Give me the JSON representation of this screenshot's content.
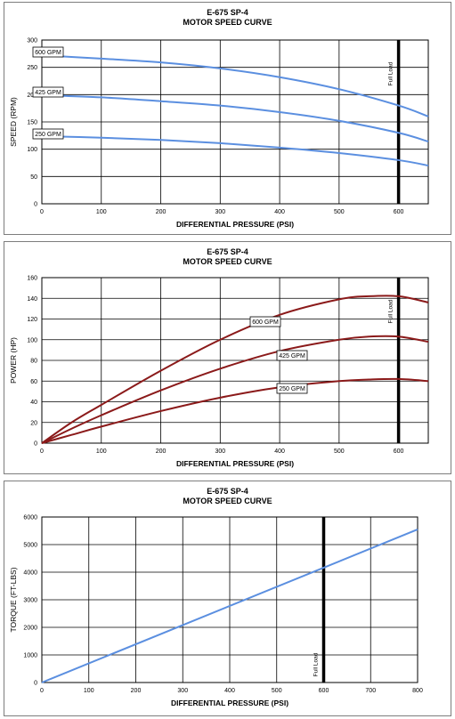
{
  "chart_data": [
    {
      "type": "line",
      "title_line1": "E-675 SP-4",
      "title_line2": "MOTOR SPEED CURVE",
      "xlabel": "DIFFERENTIAL PRESSURE (PSI)",
      "ylabel": "SPEED (RPM)",
      "xlim": [
        0,
        650
      ],
      "ylim": [
        0,
        300
      ],
      "xticks": [
        0,
        100,
        200,
        300,
        400,
        500,
        600
      ],
      "yticks": [
        0,
        50,
        100,
        150,
        200,
        250,
        300
      ],
      "grid": true,
      "series_color": "#5b8fe0",
      "series": [
        {
          "name": "600 GPM",
          "x": [
            0,
            100,
            200,
            300,
            400,
            500,
            600,
            650
          ],
          "values": [
            272,
            266,
            259,
            248,
            232,
            210,
            180,
            160
          ]
        },
        {
          "name": "425 GPM",
          "x": [
            0,
            100,
            200,
            300,
            400,
            500,
            600,
            650
          ],
          "values": [
            199,
            195,
            188,
            180,
            168,
            152,
            130,
            114
          ]
        },
        {
          "name": "250 GPM",
          "x": [
            0,
            100,
            200,
            300,
            400,
            500,
            600,
            650
          ],
          "values": [
            124,
            121,
            117,
            111,
            103,
            93,
            80,
            70
          ]
        }
      ],
      "marker": {
        "x": 600,
        "label": "Full Load",
        "color": "#000000"
      }
    },
    {
      "type": "line",
      "title_line1": "E-675 SP-4",
      "title_line2": "MOTOR SPEED CURVE",
      "xlabel": "DIFFERENTIAL PRESSURE (PSI)",
      "ylabel": "POWER (HP)",
      "xlim": [
        0,
        650
      ],
      "ylim": [
        0,
        160
      ],
      "xticks": [
        0,
        100,
        200,
        300,
        400,
        500,
        600
      ],
      "yticks": [
        0,
        20,
        40,
        60,
        80,
        100,
        120,
        140,
        160
      ],
      "grid": true,
      "series_color": "#8b1a1a",
      "series": [
        {
          "name": "600 GPM",
          "x": [
            0,
            50,
            100,
            200,
            300,
            400,
            500,
            550,
            600,
            650
          ],
          "values": [
            0,
            20,
            37,
            70,
            100,
            124,
            139,
            142,
            142,
            136
          ]
        },
        {
          "name": "425 GPM",
          "x": [
            0,
            50,
            100,
            200,
            300,
            400,
            500,
            550,
            600,
            650
          ],
          "values": [
            0,
            14,
            27,
            51,
            72,
            89,
            100,
            103,
            103,
            98
          ]
        },
        {
          "name": "250 GPM",
          "x": [
            0,
            50,
            100,
            200,
            300,
            400,
            500,
            550,
            600,
            650
          ],
          "values": [
            0,
            8,
            16,
            31,
            44,
            54,
            60,
            61.5,
            62,
            60
          ]
        }
      ],
      "marker": {
        "x": 600,
        "label": "Full Load",
        "color": "#000000"
      }
    },
    {
      "type": "line",
      "title_line1": "E-675 SP-4",
      "title_line2": "MOTOR SPEED CURVE",
      "xlabel": "DIFFERENTIAL PRESSURE (PSI)",
      "ylabel": "TORQUE (FT-LBS)",
      "xlim": [
        0,
        800
      ],
      "ylim": [
        0,
        6000
      ],
      "xticks": [
        0,
        100,
        200,
        300,
        400,
        500,
        600,
        700,
        800
      ],
      "yticks": [
        0,
        1000,
        2000,
        3000,
        4000,
        5000,
        6000
      ],
      "grid": true,
      "series_color": "#5b8fe0",
      "series": [
        {
          "x": [
            0,
            800
          ],
          "values": [
            0,
            5550
          ]
        }
      ],
      "marker": {
        "x": 600,
        "label": "Full Load",
        "color": "#000000"
      }
    }
  ]
}
